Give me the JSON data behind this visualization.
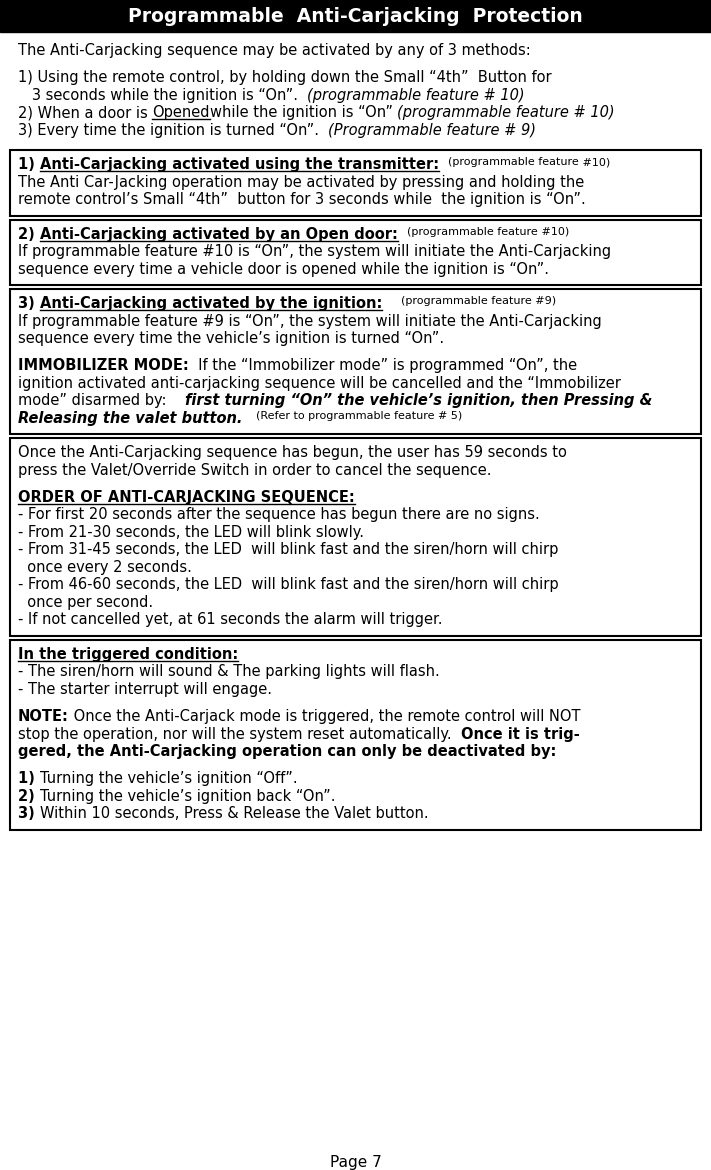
{
  "title": "Programmable  Anti-Carjacking  Protection",
  "title_bg": "#000000",
  "title_color": "#ffffff",
  "page_num": "Page 7",
  "bg_color": "#ffffff",
  "sections": [
    {
      "boxed": false,
      "lines": [
        [
          {
            "t": "The Anti-Carjacking sequence may be activated by any of 3 methods:",
            "b": false,
            "i": false,
            "u": false
          }
        ],
        [],
        [
          {
            "t": "1) Using the remote control, by holding down the Small “4th”  Button for",
            "b": false,
            "i": false,
            "u": false
          }
        ],
        [
          {
            "t": "   3 seconds while the ignition is “On”.  ",
            "b": false,
            "i": false,
            "u": false
          },
          {
            "t": "(programmable feature # 10)",
            "b": false,
            "i": true,
            "u": false
          }
        ],
        [
          {
            "t": "2) When a door is ",
            "b": false,
            "i": false,
            "u": false
          },
          {
            "t": "Opened",
            "b": false,
            "i": false,
            "u": true
          },
          {
            "t": "while the ignition is “On” ",
            "b": false,
            "i": false,
            "u": false
          },
          {
            "t": "(programmable feature # 10)",
            "b": false,
            "i": true,
            "u": false
          }
        ],
        [
          {
            "t": "3) Every time the ignition is turned “On”.  ",
            "b": false,
            "i": false,
            "u": false
          },
          {
            "t": "(Programmable feature # 9)",
            "b": false,
            "i": true,
            "u": false
          }
        ]
      ]
    },
    {
      "boxed": true,
      "lines": [
        [
          {
            "t": "1) ",
            "b": true,
            "i": false,
            "u": false
          },
          {
            "t": "Anti-Carjacking activated using the transmitter:",
            "b": true,
            "i": false,
            "u": true
          },
          {
            "t": "  ",
            "b": false,
            "i": false,
            "u": false
          },
          {
            "t": "(programmable feature",
            "b": false,
            "i": false,
            "u": false,
            "small": true
          },
          {
            "t": " #10)",
            "b": false,
            "i": false,
            "u": false,
            "small": true
          }
        ],
        [
          {
            "t": "The Anti Car-Jacking operation may be activated by pressing and holding the",
            "b": false,
            "i": false,
            "u": false
          }
        ],
        [
          {
            "t": "remote control’s Small “4th”  button for 3 seconds while  the ignition is “On”.",
            "b": false,
            "i": false,
            "u": false
          }
        ]
      ]
    },
    {
      "boxed": true,
      "lines": [
        [
          {
            "t": "2) ",
            "b": true,
            "i": false,
            "u": false
          },
          {
            "t": "Anti-Carjacking activated by an Open door:",
            "b": true,
            "i": false,
            "u": true
          },
          {
            "t": "  ",
            "b": false,
            "i": false,
            "u": false
          },
          {
            "t": "(programmable feature",
            "b": false,
            "i": false,
            "u": false,
            "small": true
          },
          {
            "t": " #10)",
            "b": false,
            "i": false,
            "u": false,
            "small": true
          }
        ],
        [
          {
            "t": "If programmable feature #10 is “On”, the system will initiate the Anti-Carjacking",
            "b": false,
            "i": false,
            "u": false
          }
        ],
        [
          {
            "t": "sequence every time a vehicle door is opened while the ignition is “On”.",
            "b": false,
            "i": false,
            "u": false
          }
        ]
      ]
    },
    {
      "boxed": true,
      "lines": [
        [
          {
            "t": "3) ",
            "b": true,
            "i": false,
            "u": false
          },
          {
            "t": "Anti-Carjacking activated by the ignition:",
            "b": true,
            "i": false,
            "u": true
          },
          {
            "t": "    ",
            "b": false,
            "i": false,
            "u": false
          },
          {
            "t": "(programmable feature #9)",
            "b": false,
            "i": false,
            "u": false,
            "small": true
          }
        ],
        [
          {
            "t": "If programmable feature #9 is “On”, the system will initiate the Anti-Carjacking",
            "b": false,
            "i": false,
            "u": false
          }
        ],
        [
          {
            "t": "sequence every time the vehicle’s ignition is turned “On”.",
            "b": false,
            "i": false,
            "u": false
          }
        ],
        [],
        [
          {
            "t": "IMMOBILIZER MODE:",
            "b": true,
            "i": false,
            "u": false
          },
          {
            "t": "  If the “Immobilizer mode” is programmed “On”, the",
            "b": false,
            "i": false,
            "u": false
          }
        ],
        [
          {
            "t": "ignition activated anti-carjacking sequence will be cancelled and the “Immobilizer",
            "b": false,
            "i": false,
            "u": false
          }
        ],
        [
          {
            "t": "mode” disarmed by:    ",
            "b": false,
            "i": false,
            "u": false
          },
          {
            "t": "first turning “On” the vehicle’s ignition, then Pressing &",
            "b": true,
            "i": true,
            "u": false
          }
        ],
        [
          {
            "t": "Releasing the valet button.",
            "b": true,
            "i": true,
            "u": false
          },
          {
            "t": "   ",
            "b": false,
            "i": false,
            "u": false
          },
          {
            "t": "(Refer to programmable feature # 5)",
            "b": false,
            "i": false,
            "u": false,
            "small": true
          }
        ]
      ]
    },
    {
      "boxed": true,
      "lines": [
        [
          {
            "t": "Once the Anti-Carjacking sequence has begun, the user has 59 seconds to",
            "b": false,
            "i": false,
            "u": false
          }
        ],
        [
          {
            "t": "press the Valet/Override Switch in order to cancel the sequence.",
            "b": false,
            "i": false,
            "u": false
          }
        ],
        [],
        [
          {
            "t": "ORDER OF ANTI-CARJACKING SEQUENCE:",
            "b": true,
            "i": false,
            "u": true
          }
        ],
        [
          {
            "t": "- For first 20 seconds after the sequence has begun there are no signs.",
            "b": false,
            "i": false,
            "u": false
          }
        ],
        [
          {
            "t": "- From 21-30 seconds, the LED will blink slowly.",
            "b": false,
            "i": false,
            "u": false
          }
        ],
        [
          {
            "t": "- From 31-45 seconds, the LED  will blink fast and the siren/horn will chirp",
            "b": false,
            "i": false,
            "u": false
          }
        ],
        [
          {
            "t": "  once every 2 seconds.",
            "b": false,
            "i": false,
            "u": false
          }
        ],
        [
          {
            "t": "- From 46-60 seconds, the LED  will blink fast and the siren/horn will chirp",
            "b": false,
            "i": false,
            "u": false
          }
        ],
        [
          {
            "t": "  once per second.",
            "b": false,
            "i": false,
            "u": false
          }
        ],
        [
          {
            "t": "- If not cancelled yet, at 61 seconds the alarm will trigger.",
            "b": false,
            "i": false,
            "u": false
          }
        ]
      ]
    },
    {
      "boxed": true,
      "lines": [
        [
          {
            "t": "In the triggered condition:",
            "b": true,
            "i": false,
            "u": true
          }
        ],
        [
          {
            "t": "- The siren/horn will sound & The parking lights will flash.",
            "b": false,
            "i": false,
            "u": false
          }
        ],
        [
          {
            "t": "- The starter interrupt will engage.",
            "b": false,
            "i": false,
            "u": false
          }
        ],
        [],
        [
          {
            "t": "NOTE:",
            "b": true,
            "i": false,
            "u": false
          },
          {
            "t": " Once the Anti-Carjack mode is triggered, the remote control will NOT",
            "b": false,
            "i": false,
            "u": false
          }
        ],
        [
          {
            "t": "stop the operation, nor will the system reset automatically.  ",
            "b": false,
            "i": false,
            "u": false
          },
          {
            "t": "Once it is trig-",
            "b": true,
            "i": false,
            "u": false
          }
        ],
        [
          {
            "t": "gered, the Anti-Carjacking operation can only be deactivated by:",
            "b": true,
            "i": false,
            "u": false
          }
        ],
        [],
        [
          {
            "t": "1) ",
            "b": true,
            "i": false,
            "u": false
          },
          {
            "t": "Turning the vehicle’s ignition “Off”.",
            "b": false,
            "i": false,
            "u": false
          }
        ],
        [
          {
            "t": "2) ",
            "b": true,
            "i": false,
            "u": false
          },
          {
            "t": "Turning the vehicle’s ignition back “On”.",
            "b": false,
            "i": false,
            "u": false
          }
        ],
        [
          {
            "t": "3) ",
            "b": true,
            "i": false,
            "u": false
          },
          {
            "t": "Within 10 seconds, Press & Release the Valet button.",
            "b": false,
            "i": false,
            "u": false
          }
        ]
      ]
    }
  ]
}
